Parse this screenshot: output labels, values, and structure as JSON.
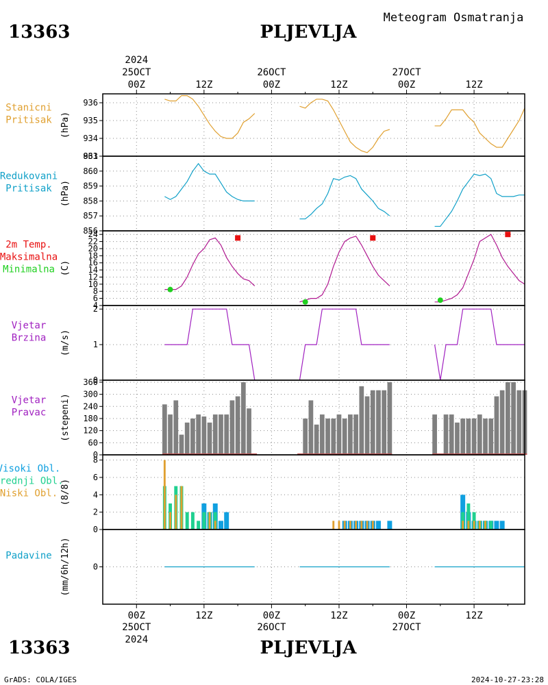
{
  "header": {
    "station_id": "13363",
    "station_name": "PLJEVLJA",
    "product": "Meteogram Osmatranja",
    "year": "2024"
  },
  "footer": {
    "station_id": "13363",
    "station_name": "PLJEVLJA",
    "credit": "GrADS: COLA/IGES",
    "timestamp": "2024-10-27-23:28"
  },
  "time_axis": {
    "day_labels": [
      "25OCT",
      "26OCT",
      "27OCT"
    ],
    "hour_labels": [
      "00Z",
      "12Z"
    ],
    "year": "2024",
    "range_hours": [
      -6,
      69
    ]
  },
  "colors": {
    "pressure_station": "#e0a030",
    "pressure_reduced": "#10a0c8",
    "temp_line": "#b01890",
    "temp_max": "#e81010",
    "temp_min": "#20d020",
    "wind": "#a020c0",
    "bars_gray": "#808080",
    "cloud_high": "#10a0e0",
    "cloud_mid": "#20d090",
    "cloud_low": "#e0a030",
    "precip": "#10a0c8"
  },
  "chart_data": [
    {
      "type": "line",
      "id": "station_pressure",
      "label_lines": [
        "Stanicni",
        "Pritisak"
      ],
      "unit": "(hPa)",
      "ylim": [
        933,
        936.5
      ],
      "yticks": [
        933,
        934,
        935,
        936
      ],
      "label_color": "#e0a030",
      "segments": [
        {
          "x": [
            5,
            6,
            7,
            8,
            9,
            10,
            11,
            12,
            13,
            14,
            15,
            16,
            17,
            18,
            19,
            20,
            21
          ],
          "y": [
            936.2,
            936.1,
            936.1,
            936.4,
            936.4,
            936.2,
            935.8,
            935.3,
            934.8,
            934.4,
            934.1,
            934.0,
            934.0,
            934.3,
            934.9,
            935.1,
            935.4
          ]
        },
        {
          "x": [
            29,
            30,
            31,
            32,
            33,
            34,
            35,
            36,
            37,
            38,
            39,
            40,
            41,
            42,
            43,
            44,
            45
          ],
          "y": [
            935.8,
            935.7,
            936.0,
            936.2,
            936.2,
            936.1,
            935.6,
            935.0,
            934.4,
            933.8,
            933.5,
            933.3,
            933.2,
            933.5,
            934.0,
            934.4,
            934.5
          ]
        },
        {
          "x": [
            53,
            54,
            55,
            56,
            57,
            58,
            59,
            60,
            61,
            62,
            63,
            64,
            65,
            66,
            67,
            68,
            69
          ],
          "y": [
            934.7,
            934.7,
            935.1,
            935.6,
            935.6,
            935.6,
            935.2,
            934.9,
            934.3,
            934.0,
            933.7,
            933.5,
            933.5,
            934.0,
            934.5,
            935.0,
            935.7
          ]
        }
      ]
    },
    {
      "type": "line",
      "id": "reduced_pressure",
      "label_lines": [
        "Redukovani",
        "Pritisak"
      ],
      "unit": "(hPa)",
      "ylim": [
        856,
        861
      ],
      "yticks": [
        856,
        857,
        858,
        859,
        860,
        861
      ],
      "label_color": "#10a0c8",
      "segments": [
        {
          "x": [
            5,
            6,
            7,
            8,
            9,
            10,
            11,
            12,
            13,
            14,
            15,
            16,
            17,
            18,
            19,
            20,
            21
          ],
          "y": [
            858.3,
            858.1,
            858.3,
            858.8,
            859.3,
            860.0,
            860.5,
            860.0,
            859.8,
            859.8,
            859.2,
            858.6,
            858.3,
            858.1,
            858.0,
            858.0,
            858.0
          ]
        },
        {
          "x": [
            29,
            30,
            31,
            32,
            33,
            34,
            35,
            36,
            37,
            38,
            39,
            40,
            41,
            42,
            43,
            44,
            45
          ],
          "y": [
            856.8,
            856.8,
            857.1,
            857.5,
            857.8,
            858.5,
            859.5,
            859.4,
            859.6,
            859.7,
            859.5,
            858.8,
            858.4,
            858.0,
            857.5,
            857.3,
            857.0
          ]
        },
        {
          "x": [
            53,
            54,
            55,
            56,
            57,
            58,
            59,
            60,
            61,
            62,
            63,
            64,
            65,
            66,
            67,
            68,
            69
          ],
          "y": [
            856.3,
            856.3,
            856.8,
            857.3,
            858.0,
            858.8,
            859.3,
            859.8,
            859.7,
            859.8,
            859.5,
            858.5,
            858.3,
            858.3,
            858.3,
            858.4,
            858.4
          ]
        }
      ]
    },
    {
      "type": "line",
      "id": "temperature",
      "label_lines": [
        "2m Temp.",
        "Maksimalna",
        "Minimalna"
      ],
      "label_colors": [
        "#e81010",
        "#e81010",
        "#20d020"
      ],
      "unit": "(C)",
      "ylim": [
        4,
        25
      ],
      "yticks": [
        4,
        6,
        8,
        10,
        12,
        14,
        16,
        18,
        20,
        22,
        24
      ],
      "label_color": "#b01890",
      "segments": [
        {
          "x": [
            5,
            6,
            7,
            8,
            9,
            10,
            11,
            12,
            13,
            14,
            15,
            16,
            17,
            18,
            19,
            20,
            21
          ],
          "y": [
            8.5,
            8.5,
            8.5,
            9.5,
            12,
            15.5,
            18.5,
            20,
            22.5,
            23,
            21,
            17.5,
            15,
            13,
            11.5,
            11,
            9.5
          ]
        },
        {
          "x": [
            29,
            30,
            31,
            32,
            33,
            34,
            35,
            36,
            37,
            38,
            39,
            40,
            41,
            42,
            43,
            44,
            45
          ],
          "y": [
            5,
            5.5,
            6,
            6,
            7,
            10,
            15,
            19,
            22,
            23,
            23.5,
            21,
            18,
            15,
            12.5,
            11,
            9.5
          ]
        },
        {
          "x": [
            53,
            54,
            55,
            56,
            57,
            58,
            59,
            60,
            61,
            62,
            63,
            64,
            65,
            66,
            67,
            68,
            69
          ],
          "y": [
            5,
            5,
            5.5,
            6,
            7,
            9,
            13,
            17,
            22,
            23,
            24,
            21,
            17.5,
            15,
            13,
            11,
            10
          ]
        }
      ],
      "max_points": [
        {
          "x": 18,
          "y": 23
        },
        {
          "x": 42,
          "y": 23
        },
        {
          "x": 66,
          "y": 24
        }
      ],
      "min_points": [
        {
          "x": 6,
          "y": 8.5
        },
        {
          "x": 30,
          "y": 5
        },
        {
          "x": 54,
          "y": 5.5
        }
      ]
    },
    {
      "type": "line",
      "id": "wind_speed",
      "label_lines": [
        "Vjetar",
        "Brzina"
      ],
      "unit": "(m/s)",
      "ylim": [
        0,
        2.1
      ],
      "yticks": [
        0,
        1,
        2
      ],
      "label_color": "#a020c0",
      "segments": [
        {
          "x": [
            5,
            6,
            7,
            8,
            9,
            10,
            11,
            12,
            13,
            14,
            15,
            16,
            17,
            18,
            19,
            20,
            21
          ],
          "y": [
            1,
            1,
            1,
            1,
            1,
            2,
            2,
            2,
            2,
            2,
            2,
            2,
            1,
            1,
            1,
            1,
            0
          ]
        },
        {
          "x": [
            29,
            30,
            31,
            32,
            33,
            34,
            35,
            36,
            37,
            38,
            39,
            40,
            41,
            42,
            43,
            44,
            45
          ],
          "y": [
            0,
            1,
            1,
            1,
            2,
            2,
            2,
            2,
            2,
            2,
            2,
            1,
            1,
            1,
            1,
            1,
            1
          ]
        },
        {
          "x": [
            53,
            54,
            55,
            56,
            57,
            58,
            59,
            60,
            61,
            62,
            63,
            64,
            65,
            66,
            67,
            68,
            69
          ],
          "y": [
            1,
            0,
            1,
            1,
            1,
            2,
            2,
            2,
            2,
            2,
            2,
            1,
            1,
            1,
            1,
            1,
            1
          ]
        }
      ]
    },
    {
      "type": "bar",
      "id": "wind_direction",
      "label_lines": [
        "Vjetar",
        "Pravac"
      ],
      "unit": "(stepeni)",
      "ylim": [
        0,
        370
      ],
      "yticks": [
        0,
        60,
        120,
        180,
        240,
        300,
        360
      ],
      "label_color": "#a020c0",
      "segments": [
        {
          "x": [
            5,
            6,
            7,
            8,
            9,
            10,
            11,
            12,
            13,
            14,
            15,
            16,
            17,
            18,
            19,
            20,
            21
          ],
          "y": [
            250,
            200,
            270,
            100,
            160,
            180,
            200,
            190,
            160,
            200,
            200,
            200,
            270,
            290,
            360,
            230,
            0
          ]
        },
        {
          "x": [
            29,
            30,
            31,
            32,
            33,
            34,
            35,
            36,
            37,
            38,
            39,
            40,
            41,
            42,
            43,
            44,
            45
          ],
          "y": [
            0,
            180,
            270,
            150,
            200,
            180,
            180,
            200,
            180,
            200,
            200,
            340,
            290,
            320,
            320,
            320,
            360
          ]
        },
        {
          "x": [
            53,
            54,
            55,
            56,
            57,
            58,
            59,
            60,
            61,
            62,
            63,
            64,
            65,
            66,
            67,
            68,
            69
          ],
          "y": [
            200,
            0,
            200,
            200,
            160,
            180,
            180,
            180,
            200,
            180,
            180,
            290,
            320,
            360,
            360,
            320,
            320
          ]
        }
      ]
    },
    {
      "type": "bar",
      "id": "clouds",
      "label_lines": [
        "Visoki Obl.",
        "Srednji Obl.",
        "Niski Obl."
      ],
      "label_colors": [
        "#10a0e0",
        "#20d090",
        "#e0a030"
      ],
      "unit": "(8/8)",
      "ylim": [
        0,
        8.6
      ],
      "yticks": [
        0,
        2,
        4,
        6,
        8
      ],
      "series": [
        {
          "name": "Visoki Obl.",
          "x": [
            12,
            13,
            14,
            15,
            16,
            37,
            38,
            39,
            40,
            41,
            42,
            43,
            44,
            45,
            58,
            59,
            60,
            61,
            62,
            63,
            64,
            65
          ],
          "values": [
            3,
            2,
            3,
            1,
            2,
            1,
            1,
            1,
            1,
            1,
            1,
            1,
            0,
            1,
            4,
            2,
            1,
            1,
            1,
            1,
            1,
            1
          ]
        },
        {
          "name": "Srednji Obl.",
          "x": [
            5,
            6,
            7,
            8,
            9,
            10,
            11,
            12,
            13,
            14,
            58,
            59,
            60,
            61,
            62,
            63
          ],
          "values": [
            5,
            3,
            5,
            5,
            2,
            2,
            1,
            2,
            2,
            2,
            2,
            3,
            2,
            1,
            1,
            1
          ]
        },
        {
          "name": "Niski Obl.",
          "x": [
            5,
            6,
            7,
            8,
            13,
            14,
            35,
            36,
            37,
            38,
            39,
            40,
            41,
            42,
            58,
            59,
            60,
            61,
            62
          ],
          "values": [
            8,
            2,
            4,
            5,
            2,
            1,
            1,
            1,
            1,
            1,
            1,
            1,
            1,
            1,
            1,
            1,
            1,
            1,
            1
          ]
        }
      ]
    },
    {
      "type": "line",
      "id": "precipitation",
      "label_lines": [
        "Padavine"
      ],
      "unit": "(mm/6h/12h)",
      "ylim": [
        -1,
        1
      ],
      "yticks": [
        0
      ],
      "label_color": "#10a0c8",
      "segments": [
        {
          "x": [
            5,
            21
          ],
          "y": [
            0,
            0
          ]
        },
        {
          "x": [
            29,
            45
          ],
          "y": [
            0,
            0
          ]
        },
        {
          "x": [
            53,
            69
          ],
          "y": [
            0,
            0
          ]
        }
      ]
    }
  ]
}
